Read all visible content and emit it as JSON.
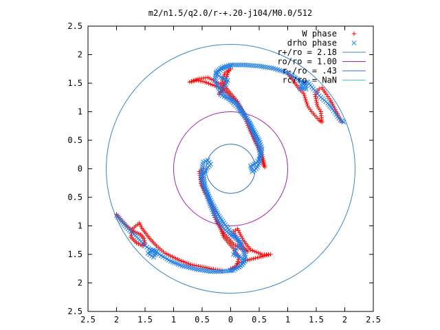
{
  "chart_data": {
    "type": "scatter",
    "title": "m2/n1.5/q2.0/r-+.20-j104/M0.0/512",
    "xlabel": "",
    "ylabel": "",
    "xlim": [
      -2.5,
      2.5
    ],
    "ylim": [
      -2.5,
      2.5
    ],
    "x_ticks": [
      "2.5",
      "2",
      "1.5",
      "1",
      "0.5",
      "0",
      "0.5",
      "1",
      "1.5",
      "2",
      "2.5"
    ],
    "y_ticks": [
      "2.5",
      "2",
      "1.5",
      "1",
      "0.5",
      "0",
      "0.5",
      "1",
      "1.5",
      "2",
      "2.5"
    ],
    "grid": false,
    "legend_position": "top-right",
    "circles": [
      {
        "name": "r+/ro = 2.18",
        "radius": 2.18,
        "color": "#3a84c0"
      },
      {
        "name": "ro/ro = 1.00",
        "radius": 1.0,
        "color": "#a020b0"
      },
      {
        "name": "r-/ro = .43",
        "radius": 0.43,
        "color": "#2a70c0"
      },
      {
        "name": "rc/ro = NaN",
        "radius": 0,
        "color": "#40c8d8"
      }
    ],
    "series": [
      {
        "name": "W phase",
        "marker": "+",
        "color": "#ff0000",
        "curves": [
          [
            [
              0.0,
              -1.75
            ],
            [
              0.1,
              -1.7
            ],
            [
              0.15,
              -1.55
            ],
            [
              0.05,
              -1.4
            ],
            [
              -0.12,
              -1.2
            ],
            [
              -0.2,
              -1.0
            ],
            [
              -0.28,
              -0.78
            ],
            [
              -0.38,
              -0.5
            ],
            [
              -0.5,
              -0.3
            ],
            [
              -0.55,
              -0.05
            ],
            [
              -0.48,
              0.0
            ],
            [
              -0.52,
              -0.25
            ],
            [
              -0.45,
              -0.42
            ],
            [
              -0.33,
              -0.65
            ],
            [
              -0.25,
              -0.92
            ],
            [
              -0.1,
              -1.15
            ],
            [
              0.05,
              -1.32
            ],
            [
              0.18,
              -1.4
            ],
            [
              0.3,
              -1.45
            ],
            [
              0.15,
              -1.3
            ],
            [
              0.05,
              -1.1
            ],
            [
              0.12,
              -1.05
            ],
            [
              0.22,
              -1.25
            ],
            [
              0.35,
              -1.42
            ],
            [
              0.55,
              -1.5
            ],
            [
              0.7,
              -1.5
            ],
            [
              0.5,
              -1.55
            ],
            [
              0.3,
              -1.6
            ],
            [
              0.15,
              -1.65
            ],
            [
              0.05,
              -1.75
            ]
          ],
          [
            [
              0.0,
              1.75
            ],
            [
              -0.1,
              1.68
            ],
            [
              -0.15,
              1.52
            ],
            [
              -0.05,
              1.38
            ],
            [
              0.12,
              1.18
            ],
            [
              0.22,
              0.98
            ],
            [
              0.3,
              0.76
            ],
            [
              0.42,
              0.5
            ],
            [
              0.52,
              0.3
            ],
            [
              0.58,
              0.05
            ],
            [
              0.6,
              0.03
            ],
            [
              0.55,
              0.25
            ],
            [
              0.48,
              0.42
            ],
            [
              0.37,
              0.65
            ],
            [
              0.27,
              0.92
            ],
            [
              0.12,
              1.15
            ],
            [
              -0.05,
              1.32
            ],
            [
              -0.18,
              1.42
            ],
            [
              -0.32,
              1.47
            ],
            [
              -0.45,
              1.52
            ],
            [
              -0.6,
              1.55
            ],
            [
              -0.72,
              1.52
            ],
            [
              -0.55,
              1.58
            ],
            [
              -0.4,
              1.6
            ],
            [
              -0.3,
              1.55
            ],
            [
              -0.18,
              1.48
            ],
            [
              -0.12,
              1.4
            ],
            [
              -0.2,
              1.3
            ],
            [
              -0.1,
              1.52
            ],
            [
              -0.05,
              1.68
            ],
            [
              0.0,
              1.75
            ]
          ],
          [
            [
              1.0,
              1.68
            ],
            [
              1.2,
              1.4
            ],
            [
              1.28,
              1.32
            ],
            [
              1.35,
              1.1
            ],
            [
              1.42,
              1.0
            ],
            [
              1.55,
              0.85
            ],
            [
              1.6,
              0.82
            ],
            [
              1.58,
              1.0
            ],
            [
              1.52,
              1.1
            ],
            [
              1.48,
              1.3
            ],
            [
              1.55,
              1.4
            ],
            [
              1.6,
              1.42
            ],
            [
              1.68,
              1.3
            ],
            [
              1.75,
              1.2
            ],
            [
              1.8,
              1.1
            ],
            [
              1.85,
              1.0
            ],
            [
              1.9,
              0.9
            ],
            [
              1.95,
              0.82
            ]
          ],
          [
            [
              -2.0,
              -0.8
            ],
            [
              -1.92,
              -0.9
            ],
            [
              -1.8,
              -1.02
            ],
            [
              -1.7,
              -1.1
            ],
            [
              -1.58,
              -1.15
            ],
            [
              -1.52,
              -1.22
            ],
            [
              -1.5,
              -1.3
            ],
            [
              -1.55,
              -1.35
            ],
            [
              -1.65,
              -1.3
            ],
            [
              -1.75,
              -1.2
            ],
            [
              -1.72,
              -1.05
            ],
            [
              -1.6,
              -0.95
            ],
            [
              -1.55,
              -1.05
            ],
            [
              -1.42,
              -1.22
            ],
            [
              -1.3,
              -1.35
            ],
            [
              -1.15,
              -1.48
            ],
            [
              -0.9,
              -1.6
            ],
            [
              -0.7,
              -1.68
            ],
            [
              -0.5,
              -1.72
            ],
            [
              -0.3,
              -1.76
            ],
            [
              -0.15,
              -1.78
            ]
          ]
        ]
      },
      {
        "name": "drho phase",
        "marker": "x",
        "color": "#1f7ee8",
        "curves": [
          [
            [
              0.0,
              1.8
            ],
            [
              -0.15,
              1.75
            ],
            [
              -0.25,
              1.68
            ],
            [
              -0.18,
              1.6
            ],
            [
              -0.05,
              1.55
            ],
            [
              -0.1,
              1.45
            ],
            [
              -0.2,
              1.35
            ],
            [
              -0.15,
              1.28
            ],
            [
              0.0,
              1.22
            ],
            [
              0.12,
              1.15
            ],
            [
              0.2,
              1.0
            ],
            [
              0.28,
              0.9
            ],
            [
              0.35,
              0.75
            ],
            [
              0.42,
              0.55
            ],
            [
              0.48,
              0.4
            ],
            [
              0.52,
              0.25
            ],
            [
              0.5,
              0.1
            ],
            [
              0.45,
              0.0
            ],
            [
              0.38,
              -0.05
            ],
            [
              0.35,
              0.05
            ],
            [
              0.45,
              0.1
            ],
            [
              0.52,
              0.2
            ],
            [
              0.55,
              0.35
            ],
            [
              0.5,
              0.5
            ],
            [
              0.42,
              0.65
            ],
            [
              0.33,
              0.8
            ],
            [
              0.22,
              0.95
            ],
            [
              0.12,
              1.08
            ],
            [
              0.0,
              1.2
            ],
            [
              -0.1,
              1.3
            ],
            [
              -0.2,
              1.4
            ],
            [
              -0.28,
              1.55
            ],
            [
              -0.25,
              1.7
            ],
            [
              -0.15,
              1.78
            ],
            [
              0.0,
              1.82
            ],
            [
              0.25,
              1.82
            ],
            [
              0.5,
              1.8
            ],
            [
              0.75,
              1.76
            ],
            [
              1.0,
              1.68
            ],
            [
              1.2,
              1.55
            ],
            [
              1.3,
              1.5
            ],
            [
              1.32,
              1.4
            ],
            [
              1.22,
              1.4
            ],
            [
              1.25,
              1.5
            ],
            [
              1.35,
              1.52
            ],
            [
              1.45,
              1.4
            ],
            [
              1.55,
              1.28
            ],
            [
              1.7,
              1.15
            ],
            [
              1.78,
              1.05
            ],
            [
              1.85,
              0.95
            ],
            [
              1.92,
              0.85
            ],
            [
              1.98,
              0.82
            ]
          ],
          [
            [
              0.0,
              -1.78
            ],
            [
              0.15,
              -1.72
            ],
            [
              0.25,
              -1.62
            ],
            [
              0.18,
              -1.55
            ],
            [
              0.05,
              -1.5
            ],
            [
              0.1,
              -1.4
            ],
            [
              0.2,
              -1.3
            ],
            [
              0.12,
              -1.22
            ],
            [
              -0.02,
              -1.15
            ],
            [
              -0.12,
              -1.05
            ],
            [
              -0.2,
              -0.95
            ],
            [
              -0.28,
              -0.82
            ],
            [
              -0.35,
              -0.65
            ],
            [
              -0.42,
              -0.45
            ],
            [
              -0.48,
              -0.3
            ],
            [
              -0.52,
              -0.15
            ],
            [
              -0.5,
              0.0
            ],
            [
              -0.48,
              0.12
            ],
            [
              -0.4,
              0.15
            ],
            [
              -0.35,
              0.08
            ],
            [
              -0.42,
              0.0
            ],
            [
              -0.48,
              -0.12
            ],
            [
              -0.45,
              -0.3
            ],
            [
              -0.38,
              -0.48
            ],
            [
              -0.3,
              -0.65
            ],
            [
              -0.22,
              -0.8
            ],
            [
              -0.12,
              -0.95
            ],
            [
              0.0,
              -1.1
            ],
            [
              0.12,
              -1.25
            ],
            [
              0.22,
              -1.42
            ],
            [
              0.26,
              -1.55
            ],
            [
              0.2,
              -1.68
            ],
            [
              0.05,
              -1.78
            ],
            [
              -0.15,
              -1.8
            ],
            [
              -0.35,
              -1.8
            ],
            [
              -0.6,
              -1.76
            ],
            [
              -0.85,
              -1.7
            ],
            [
              -1.05,
              -1.62
            ],
            [
              -1.25,
              -1.5
            ],
            [
              -1.35,
              -1.42
            ],
            [
              -1.45,
              -1.48
            ],
            [
              -1.35,
              -1.55
            ],
            [
              -1.3,
              -1.45
            ],
            [
              -1.4,
              -1.42
            ],
            [
              -1.5,
              -1.35
            ],
            [
              -1.62,
              -1.22
            ],
            [
              -1.75,
              -1.1
            ],
            [
              -1.85,
              -1.0
            ],
            [
              -1.93,
              -0.9
            ],
            [
              -2.0,
              -0.82
            ]
          ]
        ]
      }
    ]
  }
}
